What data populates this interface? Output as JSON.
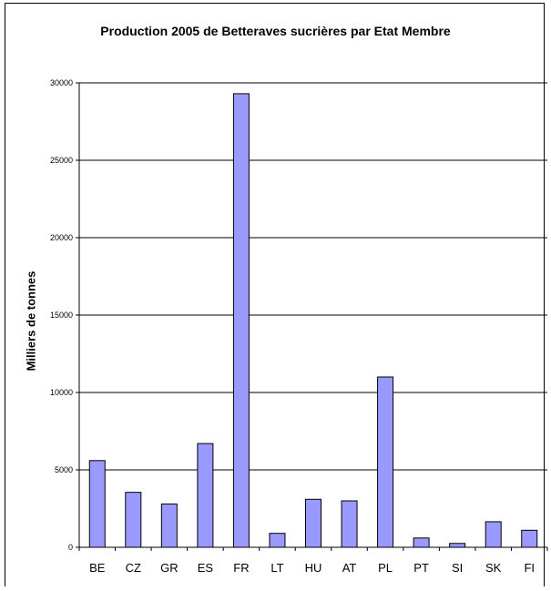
{
  "chart_data": {
    "type": "bar",
    "title": "Production 2005 de Betteraves sucrières par Etat Membre",
    "xlabel": "",
    "ylabel": "Milliers de tonnes",
    "categories": [
      "BE",
      "CZ",
      "GR",
      "ES",
      "FR",
      "LT",
      "HU",
      "AT",
      "PL",
      "PT",
      "SI",
      "SK",
      "FI"
    ],
    "values": [
      5600,
      3550,
      2800,
      6700,
      29300,
      900,
      3100,
      3000,
      11000,
      600,
      250,
      1650,
      1100
    ],
    "ylim": [
      0,
      30000
    ],
    "yticks": [
      0,
      5000,
      10000,
      15000,
      20000,
      25000,
      30000
    ],
    "grid": true,
    "bar_color": "#9999FF",
    "bar_border": "#000000"
  }
}
